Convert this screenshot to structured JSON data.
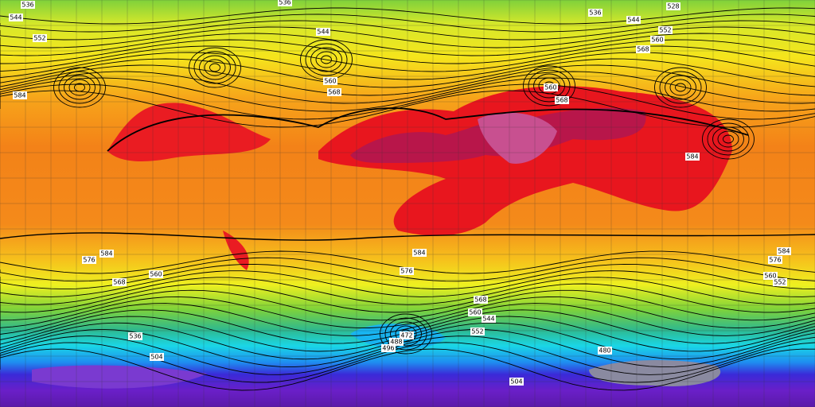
{
  "contour_labels": [
    536,
    536,
    536,
    528,
    544,
    552,
    544,
    544,
    552,
    560,
    568,
    560,
    568,
    584,
    560,
    568,
    584,
    584,
    576,
    584,
    576,
    568,
    560,
    568,
    560,
    544,
    552,
    472,
    480,
    504,
    576,
    584,
    560,
    552,
    496,
    504,
    536,
    488
  ]
}
